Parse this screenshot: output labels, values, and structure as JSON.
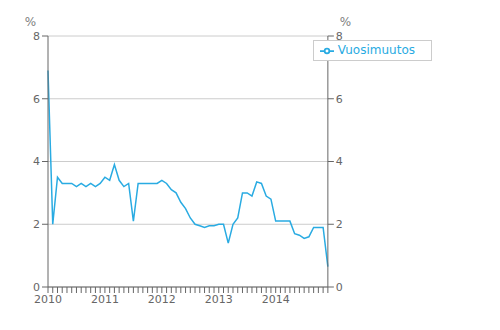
{
  "chart_data": {
    "type": "line",
    "ylabel": "%",
    "y2label": "%",
    "categories": [
      "2010",
      null,
      null,
      null,
      null,
      null,
      null,
      null,
      null,
      null,
      null,
      null,
      "2011",
      null,
      null,
      null,
      null,
      null,
      null,
      null,
      null,
      null,
      null,
      null,
      "2012",
      null,
      null,
      null,
      null,
      null,
      null,
      null,
      null,
      null,
      null,
      null,
      "2013",
      null,
      null,
      null,
      null,
      null,
      null,
      null,
      null,
      null,
      null,
      null,
      "2014",
      null,
      null,
      null,
      null,
      null,
      null,
      null,
      null,
      null,
      null,
      null
    ],
    "series": [
      {
        "name": "Vuosimuutos",
        "color": "#29ABE2",
        "values": [
          6.9,
          2.0,
          3.5,
          3.3,
          3.3,
          3.3,
          3.2,
          3.3,
          3.2,
          3.3,
          3.2,
          3.3,
          3.5,
          3.4,
          3.9,
          3.4,
          3.2,
          3.3,
          2.1,
          3.3,
          3.3,
          3.3,
          3.3,
          3.3,
          3.4,
          3.3,
          3.1,
          3.0,
          2.7,
          2.5,
          2.2,
          2.0,
          1.95,
          1.9,
          1.95,
          1.95,
          2.0,
          2.0,
          1.4,
          2.0,
          2.2,
          3.0,
          3.0,
          2.9,
          3.35,
          3.3,
          2.9,
          2.8,
          2.1,
          2.1,
          2.1,
          2.1,
          1.7,
          1.65,
          1.55,
          1.6,
          1.9,
          1.9,
          1.9,
          0.65
        ]
      }
    ],
    "ylim": [
      0,
      8
    ],
    "yticks": [
      0,
      2,
      4,
      6,
      8
    ],
    "y2lim": [
      0,
      8
    ],
    "y2ticks": [
      0,
      2,
      4,
      6,
      8
    ],
    "grid": true,
    "legend": "upper right"
  }
}
